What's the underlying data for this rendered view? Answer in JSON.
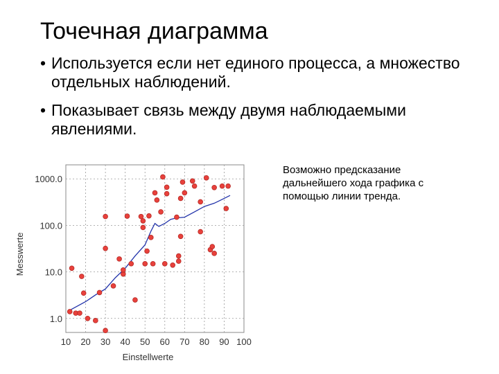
{
  "slide": {
    "title": "Точечная диаграмма",
    "bullets": [
      "Используется если нет единого процесса, а множество отдельных наблюдений.",
      "Показывает связь между двумя наблюдаемыми явлениями."
    ],
    "bullet_symbol": "•",
    "note": "Возможно предсказание дальнейшего хода графика с помощью линии тренда."
  },
  "chart_data": {
    "type": "scatter",
    "title": "",
    "xlabel": "Einstellwerte",
    "ylabel": "Messwerte",
    "xlim": [
      10,
      100
    ],
    "ylim": [
      0.5,
      2000
    ],
    "y_scale": "log",
    "x_ticks": [
      "10",
      "20",
      "30",
      "40",
      "50",
      "60",
      "70",
      "80",
      "90",
      "100"
    ],
    "y_ticks": [
      "1.0",
      "10.0",
      "100.0",
      "1000.0"
    ],
    "grid": "dashed",
    "colors": {
      "points": "#e8413c",
      "points_edge": "#b52a25",
      "trend": "#2233aa",
      "axis": "#888888"
    },
    "points": [
      {
        "x": 12,
        "y": 1.4
      },
      {
        "x": 13,
        "y": 12
      },
      {
        "x": 15,
        "y": 1.3
      },
      {
        "x": 17,
        "y": 1.3
      },
      {
        "x": 18,
        "y": 8
      },
      {
        "x": 19,
        "y": 3.5
      },
      {
        "x": 21,
        "y": 1.0
      },
      {
        "x": 25,
        "y": 0.9
      },
      {
        "x": 27,
        "y": 3.6
      },
      {
        "x": 30,
        "y": 0.55
      },
      {
        "x": 30,
        "y": 32
      },
      {
        "x": 30,
        "y": 155
      },
      {
        "x": 34,
        "y": 5
      },
      {
        "x": 37,
        "y": 19
      },
      {
        "x": 39,
        "y": 9
      },
      {
        "x": 39,
        "y": 11
      },
      {
        "x": 41,
        "y": 158
      },
      {
        "x": 43,
        "y": 15
      },
      {
        "x": 45,
        "y": 2.5
      },
      {
        "x": 48,
        "y": 155
      },
      {
        "x": 49,
        "y": 125
      },
      {
        "x": 49,
        "y": 90
      },
      {
        "x": 50,
        "y": 15
      },
      {
        "x": 51,
        "y": 28
      },
      {
        "x": 52,
        "y": 160
      },
      {
        "x": 53,
        "y": 55
      },
      {
        "x": 54,
        "y": 15
      },
      {
        "x": 55,
        "y": 500
      },
      {
        "x": 56,
        "y": 350
      },
      {
        "x": 58,
        "y": 195
      },
      {
        "x": 59,
        "y": 1100
      },
      {
        "x": 60,
        "y": 15
      },
      {
        "x": 61,
        "y": 480
      },
      {
        "x": 61,
        "y": 660
      },
      {
        "x": 64,
        "y": 14
      },
      {
        "x": 66,
        "y": 150
      },
      {
        "x": 67,
        "y": 17
      },
      {
        "x": 67,
        "y": 22
      },
      {
        "x": 68,
        "y": 380
      },
      {
        "x": 68,
        "y": 58
      },
      {
        "x": 69,
        "y": 850
      },
      {
        "x": 70,
        "y": 500
      },
      {
        "x": 74,
        "y": 900
      },
      {
        "x": 75,
        "y": 700
      },
      {
        "x": 78,
        "y": 320
      },
      {
        "x": 78,
        "y": 73
      },
      {
        "x": 81,
        "y": 1050
      },
      {
        "x": 83,
        "y": 30
      },
      {
        "x": 84,
        "y": 35
      },
      {
        "x": 85,
        "y": 25
      },
      {
        "x": 85,
        "y": 650
      },
      {
        "x": 89,
        "y": 700
      },
      {
        "x": 91,
        "y": 230
      },
      {
        "x": 92,
        "y": 700
      }
    ],
    "trend": [
      {
        "x": 12,
        "y": 1.5
      },
      {
        "x": 20,
        "y": 2.3
      },
      {
        "x": 25,
        "y": 3.2
      },
      {
        "x": 30,
        "y": 4.3
      },
      {
        "x": 35,
        "y": 7.5
      },
      {
        "x": 40,
        "y": 12
      },
      {
        "x": 45,
        "y": 22
      },
      {
        "x": 50,
        "y": 38
      },
      {
        "x": 53,
        "y": 75
      },
      {
        "x": 55,
        "y": 110
      },
      {
        "x": 57,
        "y": 95
      },
      {
        "x": 60,
        "y": 110
      },
      {
        "x": 63,
        "y": 135
      },
      {
        "x": 66,
        "y": 145
      },
      {
        "x": 70,
        "y": 150
      },
      {
        "x": 75,
        "y": 195
      },
      {
        "x": 80,
        "y": 255
      },
      {
        "x": 85,
        "y": 300
      },
      {
        "x": 88,
        "y": 345
      },
      {
        "x": 93,
        "y": 440
      }
    ]
  }
}
